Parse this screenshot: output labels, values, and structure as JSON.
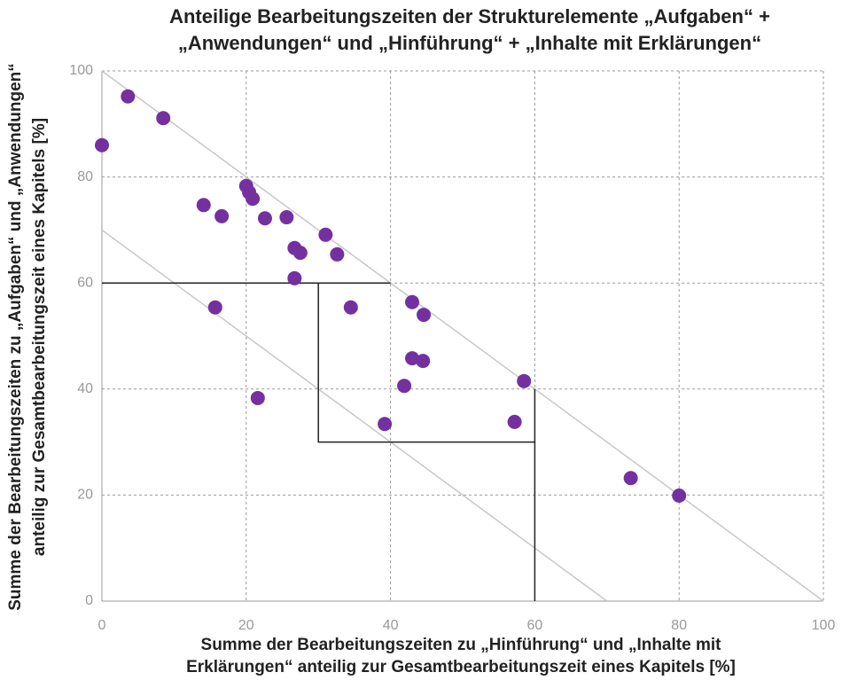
{
  "chart_data": {
    "type": "scatter",
    "title": [
      "Anteilige Bearbeitungszeiten der Strukturelemente „Aufgaben“ +",
      "„Anwendungen“ und „Hinführung“ + „Inhalte mit Erklärungen“"
    ],
    "x_label": [
      "Summe der Bearbeitungszeiten zu „Hinführung“ und „Inhalte mit",
      "Erklärungen“ anteilig zur Gesamtbearbeitungszeit eines Kapitels [%]"
    ],
    "y_label": [
      "Summe der Bearbeitungszeiten zu „Aufgaben“ und „Anwendungen“",
      "anteilig zur Gesamtbearbeitungszeit eines Kapitels [%]"
    ],
    "color": "#7530a0",
    "x": [
      0,
      3.6,
      8.5,
      14.1,
      16.6,
      15.7,
      20.0,
      20.4,
      20.9,
      22.6,
      25.6,
      26.7,
      27.5,
      26.7,
      21.6,
      31.0,
      32.6,
      34.5,
      39.2,
      41.9,
      43.0,
      44.6,
      43.0,
      44.5,
      57.2,
      58.5,
      73.3,
      80.0
    ],
    "values": [
      86,
      95.2,
      91.1,
      74.7,
      72.6,
      55.4,
      78.3,
      77.1,
      75.9,
      72.2,
      72.4,
      66.6,
      65.7,
      60.9,
      38.3,
      69.1,
      65.4,
      55.4,
      33.4,
      40.6,
      56.4,
      54.0,
      45.8,
      45.3,
      33.8,
      41.5,
      23.2,
      19.9
    ],
    "reference_lines": [
      {
        "color": "#c8c8c8",
        "x": [
          0,
          100
        ],
        "y": [
          100,
          0
        ]
      },
      {
        "color": "#c8c8c8",
        "x": [
          0,
          70
        ],
        "y": [
          70,
          0
        ]
      },
      {
        "color": "#222222",
        "x": [
          0,
          40
        ],
        "y": [
          60,
          60
        ]
      },
      {
        "color": "#222222",
        "x": [
          30,
          30,
          60,
          60
        ],
        "y": [
          60,
          30,
          30,
          40
        ]
      },
      {
        "color": "#222222",
        "x": [
          60,
          60
        ],
        "y": [
          30,
          0
        ]
      }
    ],
    "xlim": [
      0,
      100
    ],
    "ylim": [
      0,
      100
    ],
    "xticks": [
      0,
      20,
      40,
      60,
      80,
      100
    ],
    "yticks": [
      0,
      20,
      40,
      60,
      80,
      100
    ],
    "grid": true
  }
}
